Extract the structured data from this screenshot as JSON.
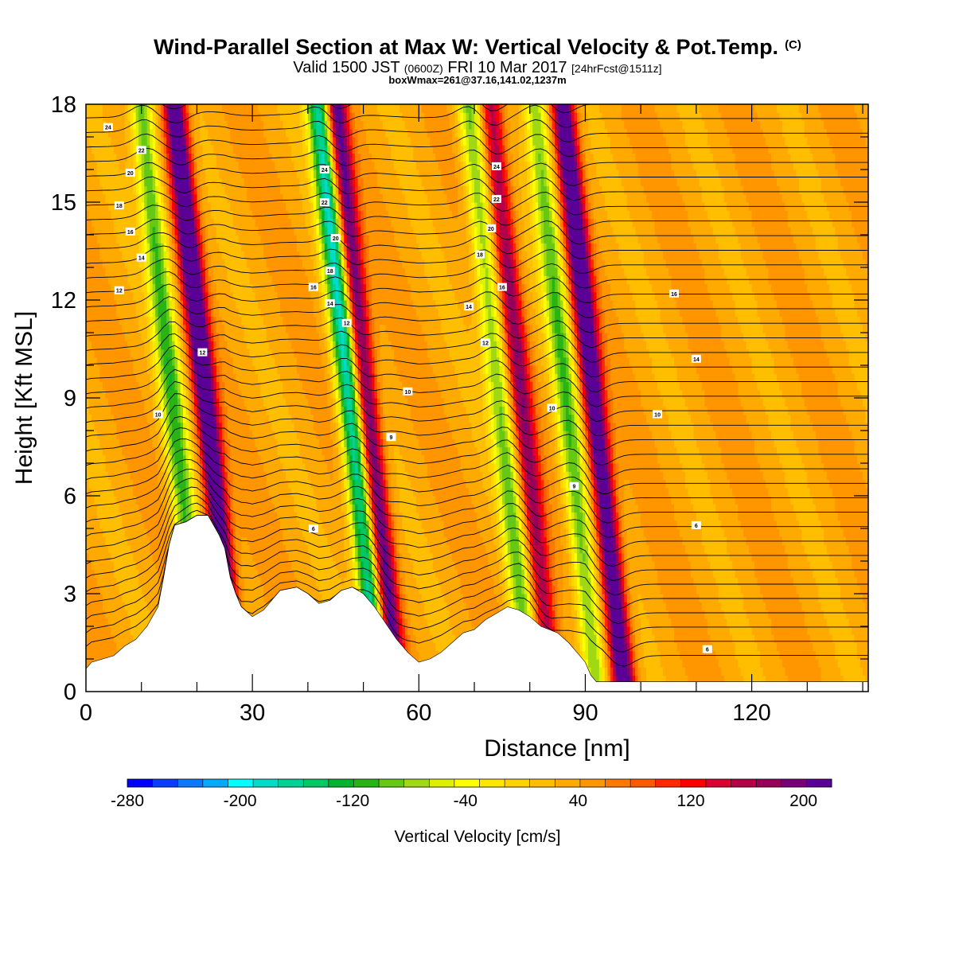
{
  "chart_data": {
    "type": "heatmap",
    "title": "Wind-Parallel Section at Max W: Vertical Velocity & Pot.Temp.",
    "title_mark": "(C)",
    "subtitle": {
      "valid": "Valid 1500 JST",
      "utc": "(0600Z)",
      "date": "FRI 10 Mar 2017",
      "fcst": "[24hrFcst@1511z]"
    },
    "box_label": "boxWmax=261@37.16,141.02,1237m",
    "xlabel": "Distance [nm]",
    "ylabel": "Height [Kft MSL]",
    "xlim": [
      0,
      141
    ],
    "ylim": [
      0,
      18
    ],
    "x_ticks": [
      "0",
      "30",
      "60",
      "90",
      "120"
    ],
    "y_ticks": [
      "0",
      "3",
      "6",
      "9",
      "12",
      "15",
      "18"
    ],
    "colorbar": {
      "label": "Vertical Velocity [cm/s]",
      "ticks": [
        "-280",
        "-200",
        "-120",
        "-40",
        "40",
        "120",
        "200"
      ],
      "min": -280,
      "max": 220,
      "colors": [
        "#0000ff",
        "#0a3cff",
        "#0a78ff",
        "#00aaff",
        "#00ffff",
        "#00dcc8",
        "#00d296",
        "#00c864",
        "#00b432",
        "#28b414",
        "#64c814",
        "#a0d814",
        "#dcf000",
        "#ffff00",
        "#ffe600",
        "#ffd200",
        "#ffbe00",
        "#ffaa00",
        "#ff9600",
        "#ff7800",
        "#ff5a00",
        "#ff2800",
        "#ff0000",
        "#dc0032",
        "#b40046",
        "#96005a",
        "#780078",
        "#5a0096"
      ]
    },
    "terrain_kft": [
      [
        0,
        0.7
      ],
      [
        1,
        0.9
      ],
      [
        5,
        1.1
      ],
      [
        7,
        1.4
      ],
      [
        9,
        1.6
      ],
      [
        11,
        2.0
      ],
      [
        13,
        2.6
      ],
      [
        14,
        3.5
      ],
      [
        15,
        4.5
      ],
      [
        16,
        5.1
      ],
      [
        18,
        5.2
      ],
      [
        20,
        5.4
      ],
      [
        22,
        5.4
      ],
      [
        23,
        5.1
      ],
      [
        24,
        4.8
      ],
      [
        25,
        4.4
      ],
      [
        26,
        3.5
      ],
      [
        27,
        3.0
      ],
      [
        28,
        2.6
      ],
      [
        30,
        2.3
      ],
      [
        32,
        2.5
      ],
      [
        34,
        2.9
      ],
      [
        35,
        3.1
      ],
      [
        38,
        3.2
      ],
      [
        40,
        3.0
      ],
      [
        42,
        2.7
      ],
      [
        44,
        2.8
      ],
      [
        46,
        3.1
      ],
      [
        48,
        3.2
      ],
      [
        50,
        3.0
      ],
      [
        52,
        2.6
      ],
      [
        54,
        2.1
      ],
      [
        56,
        1.6
      ],
      [
        58,
        1.2
      ],
      [
        60,
        0.9
      ],
      [
        62,
        1.0
      ],
      [
        64,
        1.2
      ],
      [
        66,
        1.5
      ],
      [
        68,
        1.8
      ],
      [
        70,
        1.9
      ],
      [
        72,
        2.2
      ],
      [
        74,
        2.4
      ],
      [
        76,
        2.6
      ],
      [
        78,
        2.5
      ],
      [
        80,
        2.3
      ],
      [
        82,
        2.0
      ],
      [
        85,
        1.8
      ],
      [
        87,
        1.5
      ],
      [
        88,
        1.3
      ],
      [
        90,
        0.9
      ],
      [
        91,
        0.5
      ],
      [
        92,
        0.3
      ],
      [
        94,
        0.3
      ],
      [
        96,
        0.3
      ],
      [
        100,
        0.3
      ],
      [
        141,
        0.3
      ]
    ],
    "updraft_cores": [
      {
        "x": 24,
        "w": 230
      },
      {
        "x": 53,
        "w": 190
      },
      {
        "x": 81,
        "w": 140
      },
      {
        "x": 94,
        "w": 215
      }
    ],
    "downdraft_cores": [
      {
        "x": 18,
        "w": -140
      },
      {
        "x": 50,
        "w": -220
      },
      {
        "x": 77,
        "w": -120
      },
      {
        "x": 89,
        "w": -130
      }
    ],
    "theta_label_values": [
      "6",
      "9",
      "10",
      "12",
      "14",
      "16",
      "18",
      "20",
      "22",
      "24"
    ]
  }
}
